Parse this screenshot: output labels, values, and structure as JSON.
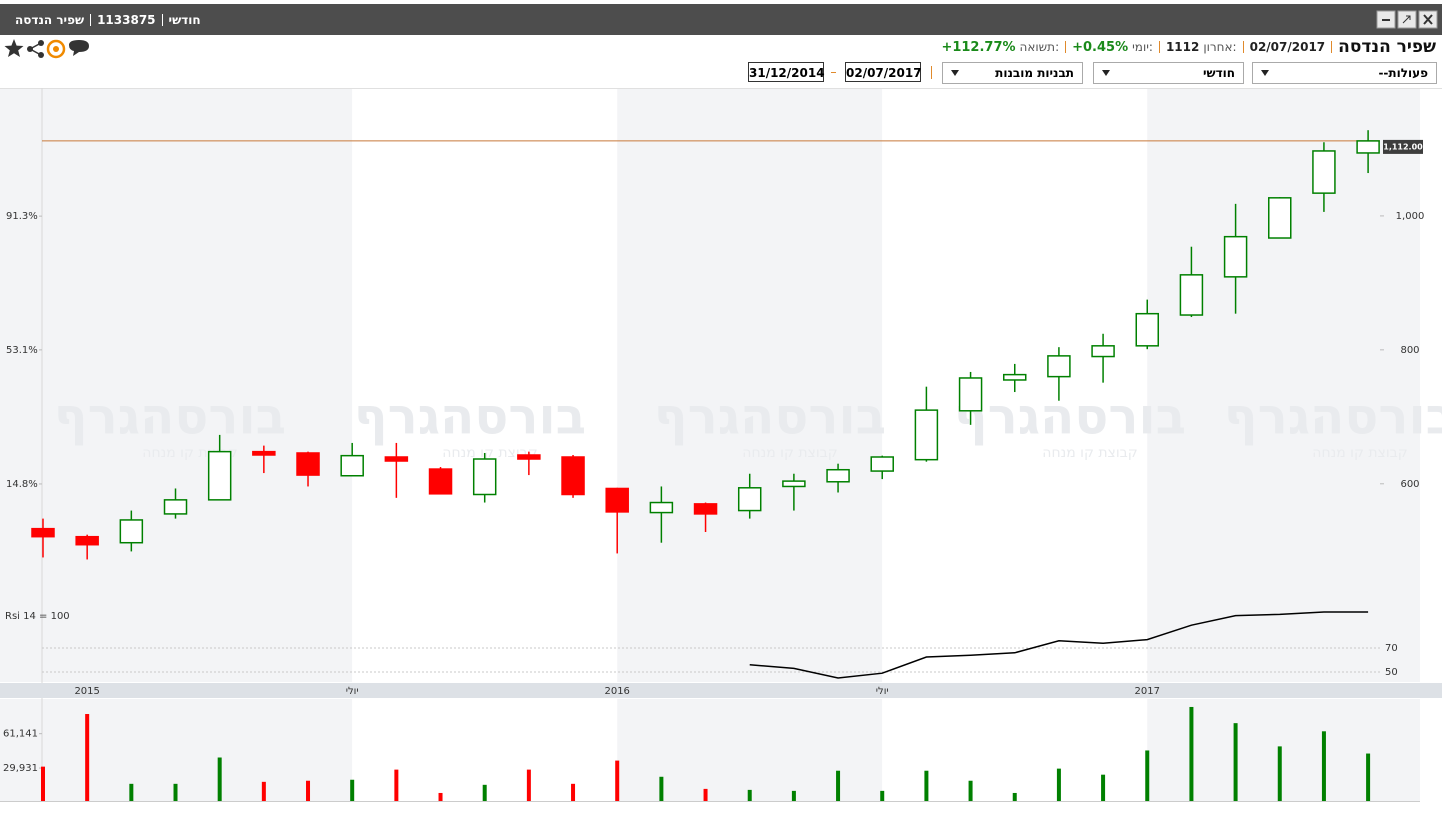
{
  "window": {
    "title_parts": [
      "שפיר הנדסה",
      "1133875",
      "חודשי"
    ]
  },
  "header": {
    "name": "שפיר הנדסה",
    "date": "02/07/2017",
    "last_label": "אחרון:",
    "last": 1112,
    "daily_label": "יומי:",
    "daily": "+0.45%",
    "return_label": "תשואה:",
    "return": "+112.77%"
  },
  "controls": {
    "actions": "--פעולות",
    "period": "חודשי",
    "patterns": "תבניות מובנות",
    "date_to": "02/07/2017",
    "date_from": "31/12/2014"
  },
  "watermark": {
    "title": "בורסהגרף",
    "subtitle": "קבוצת קו מנחה"
  },
  "chart_data": [
    {
      "type": "candlestick",
      "categories": [
        null,
        "2015",
        null,
        null,
        null,
        null,
        null,
        "יולי",
        null,
        null,
        null,
        null,
        null,
        "2016",
        null,
        null,
        null,
        null,
        null,
        "יולי",
        null,
        null,
        null,
        null,
        null,
        "2017",
        null,
        null,
        null,
        null,
        null
      ],
      "open": [
        533,
        521,
        512,
        555,
        576,
        648,
        646,
        612,
        640,
        622,
        584,
        643,
        640,
        593,
        557,
        570,
        560,
        596,
        603,
        619,
        636,
        709,
        755,
        760,
        790,
        806,
        852,
        909,
        967,
        1034,
        1094
      ],
      "high": [
        548,
        524,
        560,
        593,
        673,
        657,
        648,
        661,
        661,
        625,
        646,
        648,
        643,
        594,
        596,
        572,
        615,
        615,
        630,
        642,
        745,
        767,
        779,
        804,
        824,
        875,
        954,
        1018,
        1028,
        1110,
        1128
      ],
      "low": [
        490,
        487,
        499,
        548,
        576,
        616,
        596,
        612,
        579,
        584,
        572,
        613,
        579,
        496,
        512,
        528,
        548,
        560,
        587,
        607,
        633,
        688,
        737,
        724,
        751,
        801,
        849,
        854,
        967,
        1006,
        1064
      ],
      "close": [
        521,
        509,
        546,
        576,
        648,
        643,
        613,
        642,
        634,
        585,
        637,
        637,
        584,
        558,
        572,
        555,
        594,
        604,
        621,
        640,
        710,
        758,
        763,
        791,
        806,
        854,
        912,
        969,
        1027,
        1097,
        1112
      ],
      "ylim": [
        307,
        1191
      ],
      "yticks": [
        600,
        800,
        {
          "value": 1000,
          "label": "1,000"
        }
      ],
      "y2lim": [
        -41.2,
        127.9
      ],
      "y2ticks": [
        {
          "value": 14.8,
          "label": "14.8%"
        },
        {
          "value": 53.1,
          "label": "53.1%"
        },
        {
          "value": 91.3,
          "label": "91.3%"
        }
      ],
      "last_price": {
        "value": 1112,
        "label": "1,112.00"
      },
      "up_color": "#008000",
      "down_color": "#ff0000",
      "last_price_color": "#c8793a"
    },
    {
      "type": "line",
      "title": "Rsi 14 = 100",
      "values": [
        null,
        null,
        null,
        null,
        null,
        null,
        null,
        null,
        null,
        null,
        null,
        null,
        null,
        null,
        null,
        null,
        56,
        53,
        45,
        49,
        62.5,
        64,
        66,
        76,
        74,
        77,
        89,
        97,
        98,
        100,
        100
      ],
      "ylim": [
        40,
        100
      ],
      "yticks": [
        50,
        70
      ],
      "color": "#000000"
    },
    {
      "type": "bar",
      "values": [
        31200,
        79000,
        15600,
        15600,
        39500,
        17400,
        18400,
        19300,
        28500,
        7300,
        14700,
        28500,
        15600,
        36700,
        22000,
        11000,
        10100,
        9200,
        27500,
        9200,
        27500,
        18400,
        7300,
        29400,
        23900,
        45900,
        85400,
        70700,
        49600,
        63300,
        43100
      ],
      "ylim": [
        0,
        89000
      ],
      "yticks": [
        {
          "value": 29931,
          "label": "29,931"
        },
        {
          "value": 61141,
          "label": "61,141"
        }
      ]
    }
  ]
}
